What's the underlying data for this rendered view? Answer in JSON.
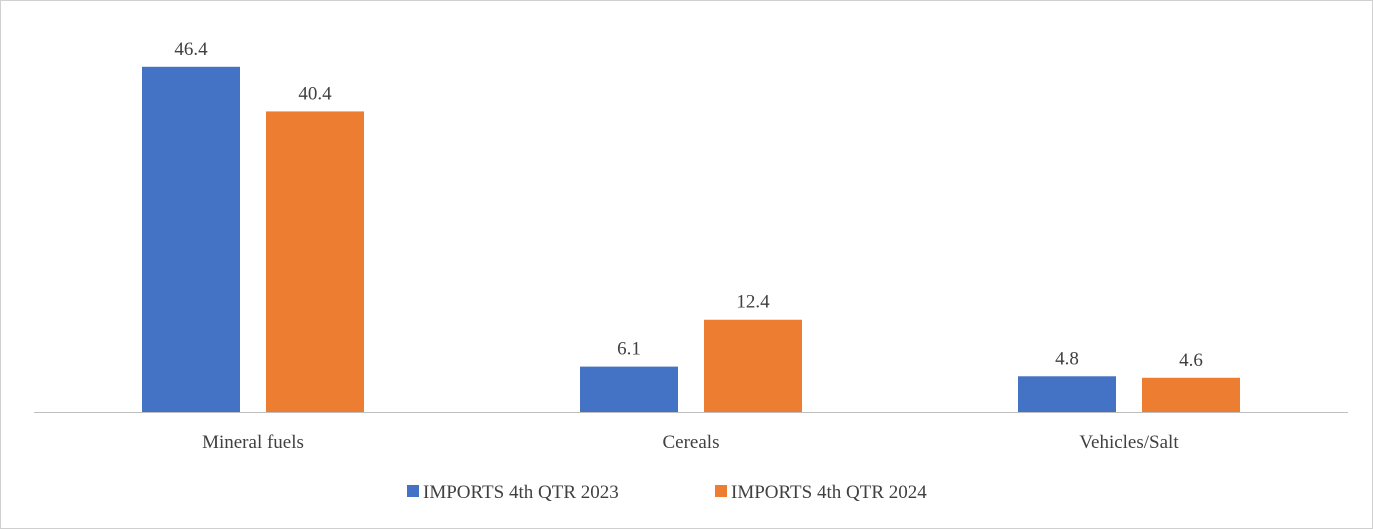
{
  "chart_data": {
    "type": "bar",
    "categories": [
      "Mineral fuels",
      "Cereals",
      "Vehicles/Salt"
    ],
    "series": [
      {
        "name": "IMPORTS 4th QTR 2023",
        "values": [
          46.4,
          6.1,
          4.8
        ],
        "color": "#4472C4"
      },
      {
        "name": "IMPORTS 4th QTR 2024",
        "values": [
          40.4,
          12.4,
          4.6
        ],
        "color": "#ED7D31"
      }
    ],
    "ylim": [
      0,
      50
    ],
    "grid": false,
    "legend_position": "bottom",
    "axis_color": "#bfbfbf"
  }
}
